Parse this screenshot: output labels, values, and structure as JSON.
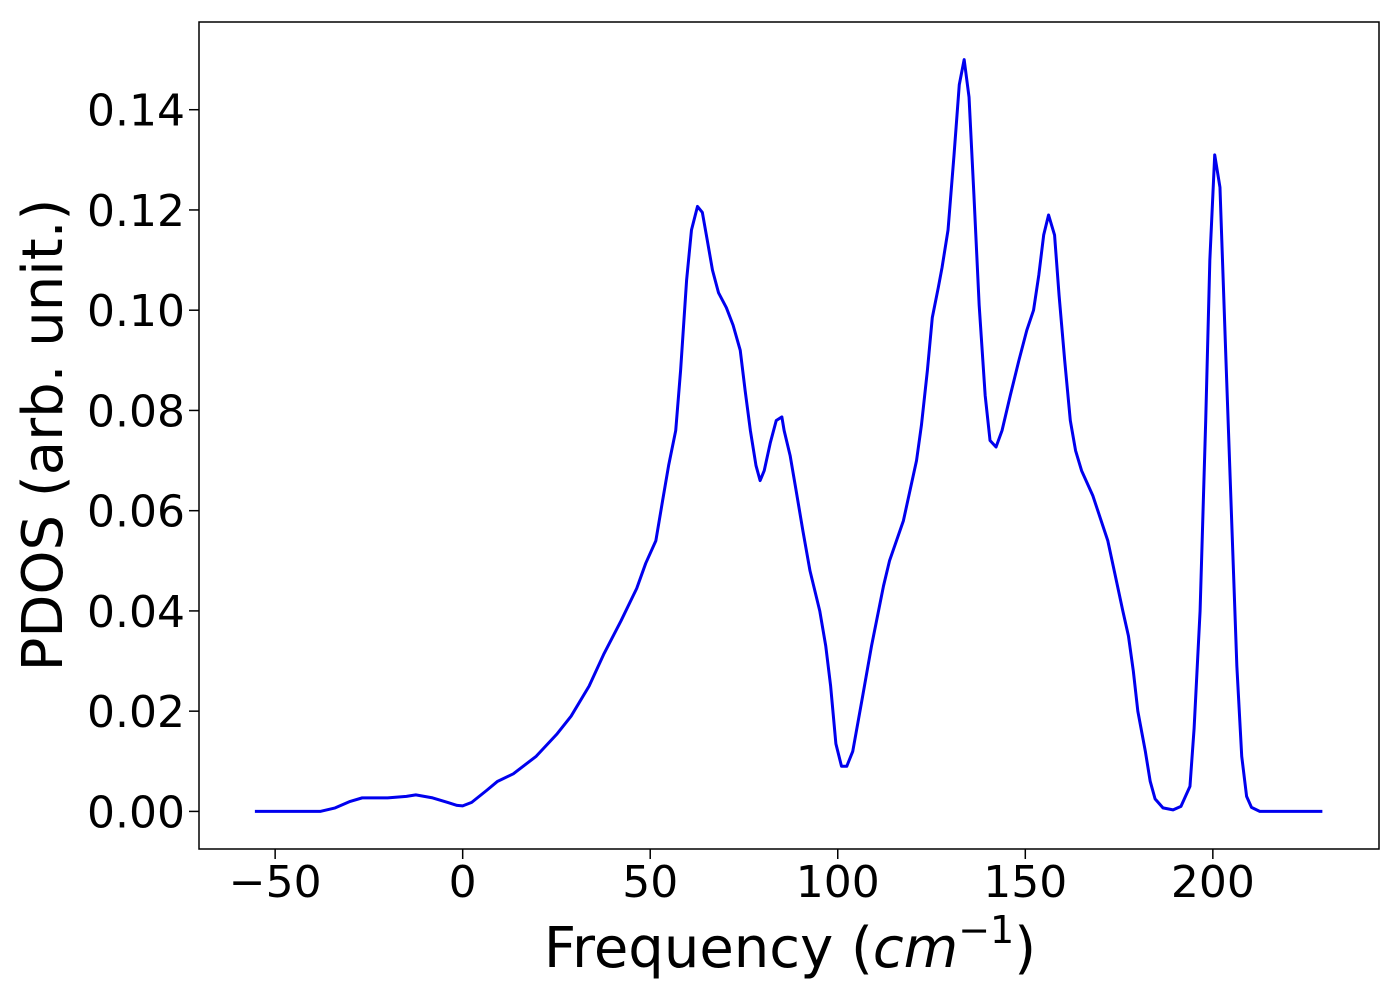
{
  "chart_data": {
    "type": "line",
    "xlabel": [
      "Frequency (",
      "cm",
      "−1",
      ")"
    ],
    "ylabel": "PDOS (arb. unit.)",
    "xlim": [
      -70.3,
      244.3
    ],
    "ylim": [
      -0.0075,
      0.1575
    ],
    "xticks": [
      {
        "value": -50,
        "label": "−50"
      },
      0,
      50,
      100,
      150,
      200
    ],
    "yticks": [
      {
        "value": 0,
        "label": "0.00"
      },
      0.02,
      0.04,
      0.06,
      0.08,
      {
        "value": 0.1,
        "label": "0.10"
      },
      0.12,
      0.14
    ],
    "series": [
      {
        "name": "PDOS",
        "color": "#0000ee",
        "x": [
          -55.4,
          -45,
          -38,
          -34,
          -30,
          -26.8,
          -20,
          -15,
          -12.5,
          -8,
          -4,
          -1.5,
          0,
          2.4,
          6.4,
          9.3,
          13.5,
          19.6,
          25.2,
          28.9,
          33.7,
          37.7,
          42.2,
          46.4,
          48.8,
          51.5,
          53.3,
          54.9,
          56.8,
          58.1,
          59.7,
          61,
          62.6,
          63.9,
          65.2,
          66.6,
          68.2,
          70.3,
          72.1,
          74,
          75.3,
          76.7,
          78.2,
          79.3,
          80.4,
          82,
          83.6,
          85.1,
          85.7,
          87.3,
          88.9,
          90.7,
          92.6,
          95.2,
          96.8,
          98.1,
          99.5,
          101,
          102.4,
          104,
          106.4,
          109,
          112.2,
          113.8,
          117.5,
          121,
          122.3,
          123.9,
          125.2,
          126.8,
          127.8,
          129.4,
          131,
          132.4,
          133.7,
          135,
          136.3,
          137.7,
          139.3,
          140.6,
          142.2,
          143.8,
          146,
          148.3,
          150.4,
          152.2,
          153.6,
          154.9,
          156.2,
          157.8,
          159,
          160.5,
          162,
          163.4,
          165,
          168,
          172,
          174,
          176,
          177.5,
          178.8,
          180,
          182,
          183.3,
          184.6,
          186.7,
          189.4,
          191.5,
          193.9,
          195,
          196.6,
          198.1,
          199.2,
          200.5,
          201.9,
          203.5,
          206.4,
          207.7,
          209,
          210.3,
          212.5,
          220,
          229.2
        ],
        "values": [
          0,
          0,
          0,
          0.0007,
          0.002,
          0.0027,
          0.0027,
          0.003,
          0.0033,
          0.0027,
          0.0018,
          0.0012,
          0.0011,
          0.0018,
          0.0042,
          0.006,
          0.0075,
          0.011,
          0.0155,
          0.019,
          0.025,
          0.0315,
          0.038,
          0.0445,
          0.0495,
          0.054,
          0.062,
          0.069,
          0.076,
          0.088,
          0.106,
          0.116,
          0.1207,
          0.1195,
          0.114,
          0.108,
          0.1035,
          0.1005,
          0.097,
          0.092,
          0.084,
          0.076,
          0.069,
          0.066,
          0.068,
          0.0735,
          0.078,
          0.0787,
          0.076,
          0.071,
          0.064,
          0.056,
          0.048,
          0.04,
          0.033,
          0.025,
          0.0135,
          0.009,
          0.009,
          0.012,
          0.022,
          0.033,
          0.045,
          0.05,
          0.058,
          0.07,
          0.077,
          0.088,
          0.0985,
          0.1045,
          0.1085,
          0.116,
          0.131,
          0.145,
          0.15,
          0.1425,
          0.123,
          0.101,
          0.083,
          0.074,
          0.0727,
          0.076,
          0.083,
          0.09,
          0.096,
          0.1,
          0.107,
          0.115,
          0.119,
          0.115,
          0.103,
          0.09,
          0.078,
          0.072,
          0.068,
          0.063,
          0.054,
          0.047,
          0.04,
          0.035,
          0.028,
          0.02,
          0.012,
          0.006,
          0.0025,
          0.0007,
          0.0003,
          0.001,
          0.005,
          0.0165,
          0.04,
          0.078,
          0.11,
          0.131,
          0.1245,
          0.09,
          0.029,
          0.011,
          0.003,
          0.0008,
          0,
          0,
          0
        ]
      }
    ]
  }
}
